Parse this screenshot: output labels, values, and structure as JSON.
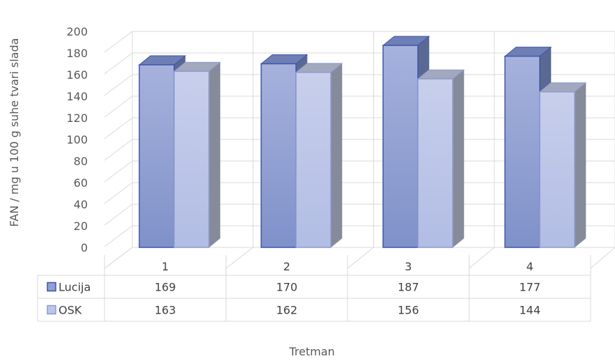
{
  "chart_data": {
    "type": "bar",
    "style": "3d-clustered-column-with-data-table",
    "categories": [
      "1",
      "2",
      "3",
      "4"
    ],
    "series": [
      {
        "name": "Lucija",
        "values": [
          169,
          170,
          187,
          177
        ],
        "color": "#8fa0d2"
      },
      {
        "name": "OSK",
        "values": [
          163,
          162,
          156,
          144
        ],
        "color": "#bcc6e8"
      }
    ],
    "xlabel": "Tretman",
    "ylabel": "FAN / mg u 100 g suhe tvari slada",
    "ylim": [
      0,
      200
    ],
    "yticks": [
      0,
      20,
      40,
      60,
      80,
      100,
      120,
      140,
      160,
      180,
      200
    ],
    "grid": true,
    "legend": "data-table-left"
  }
}
